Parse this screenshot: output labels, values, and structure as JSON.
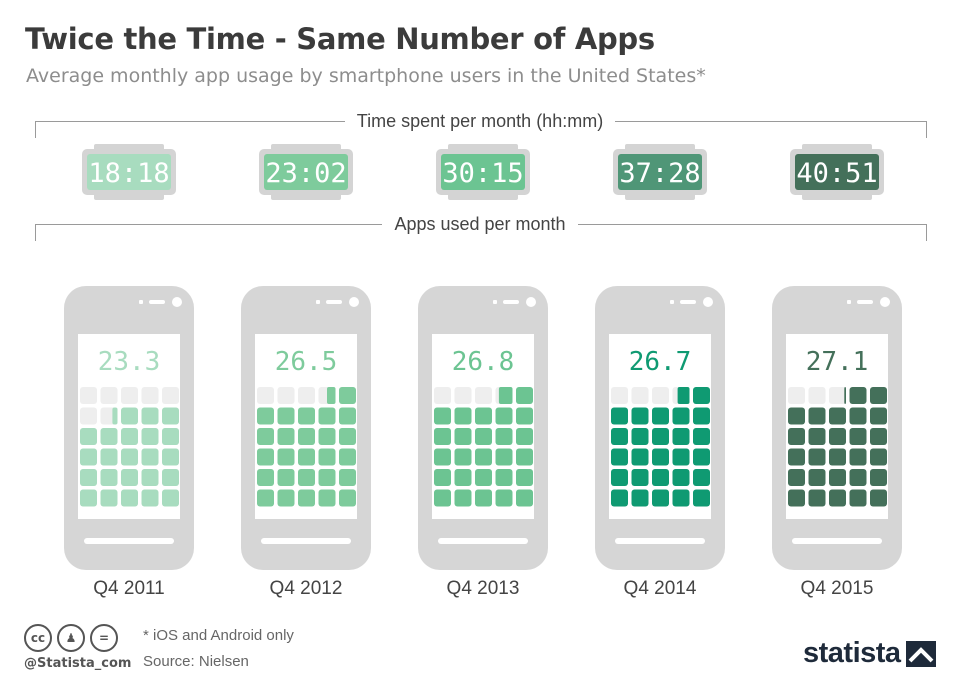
{
  "header": {
    "title": "Twice the Time - Same Number of Apps",
    "subtitle": "Average monthly app usage by smartphone users in the United States*"
  },
  "sections": {
    "time_label": "Time spent per month (hh:mm)",
    "apps_label": "Apps used per month"
  },
  "chart_data": {
    "type": "pictogram",
    "title": "Twice the Time - Same Number of Apps",
    "categories": [
      "Q4 2011",
      "Q4 2012",
      "Q4 2013",
      "Q4 2014",
      "Q4 2015"
    ],
    "series": [
      {
        "name": "Time spent per month (hh:mm)",
        "values": [
          "18:18",
          "23:02",
          "30:15",
          "37:28",
          "40:51"
        ]
      },
      {
        "name": "Apps used per month",
        "values": [
          23.3,
          26.5,
          26.8,
          26.7,
          27.1
        ]
      }
    ],
    "apps_display": [
      "23.3",
      "26.5",
      "26.8",
      "26.7",
      "27.1"
    ],
    "colors": [
      "#a8dcbf",
      "#7ecb9c",
      "#6cc492",
      "#4f9677",
      "#44705a"
    ],
    "app_colors": [
      "#a8dcbf",
      "#7ecb9c",
      "#6cc492",
      "#0f9a72",
      "#44705a"
    ],
    "grid": {
      "columns": 5,
      "rows": 6,
      "empty_color": "#eeeeee"
    }
  },
  "footer": {
    "note": "* iOS and Android only",
    "source": "Source: Nielsen",
    "handle": "@Statista_com",
    "brand": "statista",
    "cc_icons": [
      "cc-icon",
      "by-icon",
      "nd-icon"
    ]
  }
}
